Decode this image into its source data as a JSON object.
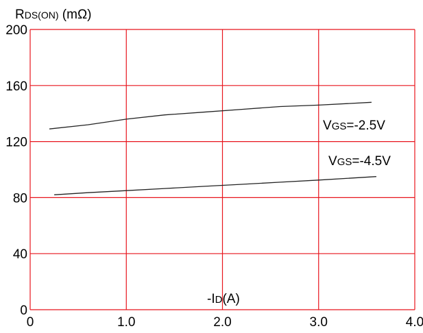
{
  "chart_data": {
    "type": "line",
    "title": "",
    "ylabel_main": "R",
    "ylabel_sub": "DS(ON)",
    "ylabel_unit": " (mΩ)",
    "xlabel_prefix": "-I",
    "xlabel_sub": "D",
    "xlabel_unit": "(A)",
    "xlim": [
      0,
      4.0
    ],
    "ylim": [
      0,
      200
    ],
    "x_ticks": [
      0,
      1.0,
      2.0,
      3.0,
      4.0
    ],
    "x_tick_labels": [
      "0",
      "1.0",
      "2.0",
      "3.0",
      "4.0"
    ],
    "y_ticks": [
      0,
      40,
      80,
      120,
      160,
      200
    ],
    "y_tick_labels": [
      "0",
      "40",
      "80",
      "120",
      "160",
      "200"
    ],
    "grid": true,
    "colors": {
      "grid": "#e8141c",
      "line": "#222222",
      "text": "#000000"
    },
    "series": [
      {
        "label_main": "V",
        "label_sub": "GS",
        "label_rest": "=-2.5V",
        "x": [
          0.2,
          0.6,
          1.0,
          1.4,
          1.8,
          2.2,
          2.6,
          3.0,
          3.55
        ],
        "y": [
          129,
          132,
          136,
          139,
          141,
          143,
          145,
          146,
          148
        ]
      },
      {
        "label_main": "V",
        "label_sub": "GS",
        "label_rest": "=-4.5V",
        "x": [
          0.25,
          0.6,
          1.0,
          1.4,
          1.8,
          2.2,
          2.6,
          3.0,
          3.6
        ],
        "y": [
          82,
          83.5,
          85,
          86.5,
          88,
          89.5,
          91,
          92.5,
          95
        ]
      }
    ]
  }
}
